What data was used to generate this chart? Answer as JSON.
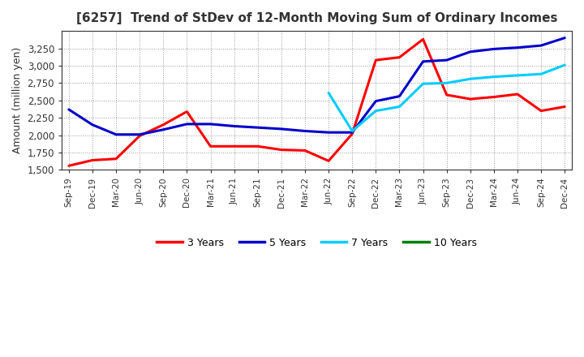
{
  "title": "[6257]  Trend of StDev of 12-Month Moving Sum of Ordinary Incomes",
  "ylabel": "Amount (million yen)",
  "ylim": [
    1500,
    3500
  ],
  "yticks": [
    1500,
    1750,
    2000,
    2250,
    2500,
    2750,
    3000,
    3250
  ],
  "background_color": "#ffffff",
  "plot_bg_color": "#ffffff",
  "grid_color": "#999999",
  "x_labels": [
    "Sep-19",
    "Dec-19",
    "Mar-20",
    "Jun-20",
    "Sep-20",
    "Dec-20",
    "Mar-21",
    "Jun-21",
    "Sep-21",
    "Dec-21",
    "Mar-22",
    "Jun-22",
    "Sep-22",
    "Dec-22",
    "Mar-23",
    "Jun-23",
    "Sep-23",
    "Dec-23",
    "Mar-24",
    "Jun-24",
    "Sep-24",
    "Dec-24"
  ],
  "series": {
    "3 Years": {
      "color": "#ff0000",
      "values": [
        1560,
        1640,
        1660,
        1990,
        2150,
        2340,
        1840,
        1840,
        1840,
        1790,
        1780,
        1630,
        2020,
        3080,
        3120,
        3380,
        2580,
        2520,
        2550,
        2590,
        2350,
        2410
      ]
    },
    "5 Years": {
      "color": "#0000cc",
      "values": [
        2370,
        2150,
        2010,
        2010,
        2080,
        2160,
        2160,
        2130,
        2110,
        2090,
        2060,
        2040,
        2040,
        2490,
        2560,
        3060,
        3080,
        3200,
        3240,
        3260,
        3290,
        3400
      ]
    },
    "7 Years": {
      "color": "#00ccff",
      "values": [
        null,
        null,
        null,
        null,
        null,
        null,
        null,
        null,
        null,
        null,
        null,
        2610,
        2060,
        2350,
        2410,
        2740,
        2750,
        2810,
        2840,
        2860,
        2880,
        3010
      ]
    },
    "10 Years": {
      "color": "#008000",
      "values": [
        null,
        null,
        null,
        null,
        null,
        null,
        null,
        null,
        null,
        null,
        null,
        null,
        null,
        null,
        null,
        null,
        null,
        null,
        null,
        null,
        null,
        null
      ]
    }
  },
  "series_order": [
    "3 Years",
    "5 Years",
    "7 Years",
    "10 Years"
  ],
  "legend_labels": [
    "3 Years",
    "5 Years",
    "7 Years",
    "10 Years"
  ],
  "legend_colors": [
    "#ff0000",
    "#0000cc",
    "#00ccff",
    "#008000"
  ]
}
